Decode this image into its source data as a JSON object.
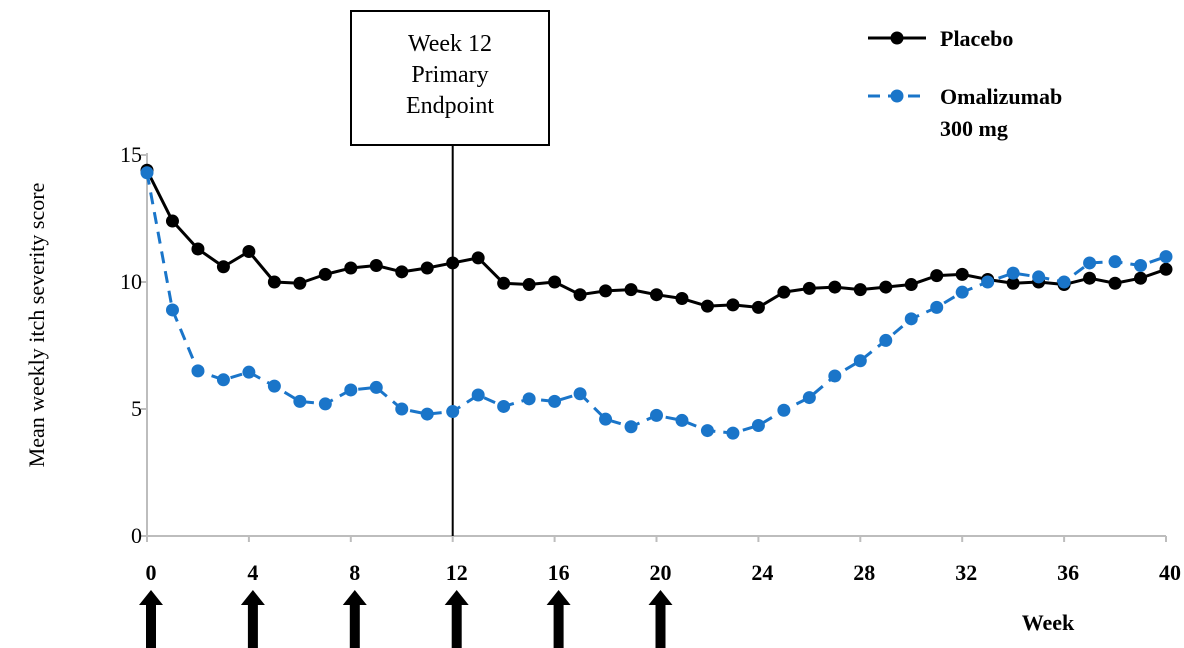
{
  "chart_data": {
    "type": "line",
    "xlabel": "Week",
    "ylabel": "Mean weekly itch severity score",
    "xlim": [
      0,
      40
    ],
    "ylim": [
      0,
      15
    ],
    "x_ticks": [
      0,
      4,
      8,
      12,
      16,
      20,
      24,
      28,
      32,
      36,
      40
    ],
    "y_ticks": [
      0,
      5,
      10,
      15
    ],
    "grid": false,
    "legend_position": "top-right",
    "annotation": {
      "lines": [
        "Week 12",
        "Primary",
        "Endpoint"
      ],
      "x": 12
    },
    "dose_weeks": [
      0,
      4,
      8,
      12,
      16,
      20
    ],
    "x": [
      0,
      1,
      2,
      3,
      4,
      5,
      6,
      7,
      8,
      9,
      10,
      11,
      12,
      13,
      14,
      15,
      16,
      17,
      18,
      19,
      20,
      21,
      22,
      23,
      24,
      25,
      26,
      27,
      28,
      29,
      30,
      31,
      32,
      33,
      34,
      35,
      36,
      37,
      38,
      39,
      40
    ],
    "series": [
      {
        "name": "Placebo",
        "color": "#000000",
        "style": "solid",
        "values": [
          14.4,
          12.4,
          11.3,
          10.6,
          11.2,
          10.0,
          9.95,
          10.3,
          10.55,
          10.65,
          10.4,
          10.55,
          10.75,
          10.95,
          9.95,
          9.9,
          10.0,
          9.5,
          9.65,
          9.7,
          9.5,
          9.35,
          9.05,
          9.1,
          9.0,
          9.6,
          9.75,
          9.8,
          9.7,
          9.8,
          9.9,
          10.25,
          10.3,
          10.1,
          9.95,
          10.0,
          9.9,
          10.15,
          9.95,
          10.15,
          10.5
        ]
      },
      {
        "name": "Omalizumab\n300 mg",
        "color": "#1a75c9",
        "style": "dashed",
        "values": [
          14.3,
          8.9,
          6.5,
          6.15,
          6.45,
          5.9,
          5.3,
          5.2,
          5.75,
          5.85,
          5.0,
          4.8,
          4.9,
          5.55,
          5.1,
          5.4,
          5.3,
          5.6,
          4.6,
          4.3,
          4.75,
          4.55,
          4.15,
          4.05,
          4.35,
          4.95,
          5.45,
          6.3,
          6.9,
          7.7,
          8.55,
          9.0,
          9.6,
          10.0,
          10.35,
          10.2,
          10.0,
          10.75,
          10.8,
          10.65,
          11.0
        ]
      }
    ]
  }
}
